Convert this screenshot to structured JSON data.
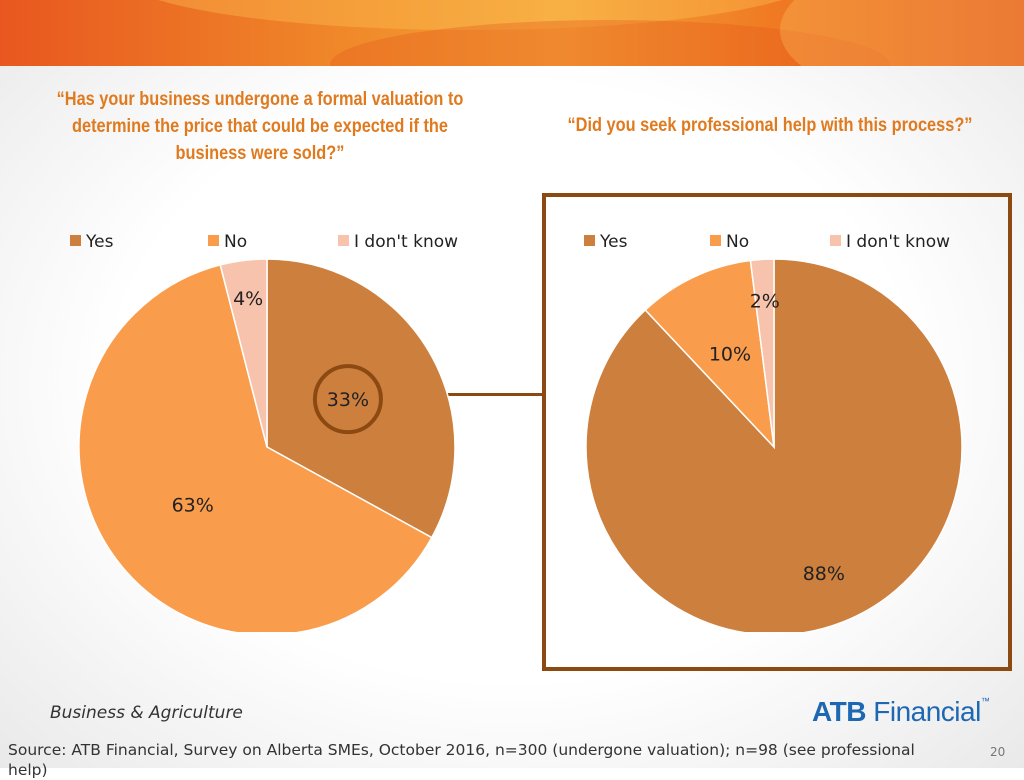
{
  "slide": {
    "question_left": "“Has your business undergone a formal valuation to determine the price that could be expected if the business were sold?”",
    "question_right": "“Did you seek professional help with this process?”",
    "footer_label": "Business & Agriculture",
    "logo": {
      "part1": "ATB",
      "part2": " Financial",
      "tm": "™"
    },
    "source": "Source:  ATB Financial, Survey on Alberta SMEs, October 2016, n=300 (undergone valuation); n=98 (see professional help)",
    "page_number": "20"
  },
  "colors": {
    "yes": "#cd7f3e",
    "no": "#f99d4c",
    "dont_know": "#f8c3ac",
    "accent": "#e07a1f",
    "frame": "#8c4a12"
  },
  "chart_data": [
    {
      "type": "pie",
      "categories": [
        "Yes",
        "No",
        "I don't know"
      ],
      "values": [
        33,
        63,
        4
      ],
      "labels": [
        "33%",
        "63%",
        "4%"
      ],
      "legend": "top",
      "title": ""
    },
    {
      "type": "pie",
      "categories": [
        "Yes",
        "No",
        "I don't know"
      ],
      "values": [
        88,
        10,
        2
      ],
      "labels": [
        "88%",
        "10%",
        "2%"
      ],
      "legend": "top",
      "title": ""
    }
  ]
}
